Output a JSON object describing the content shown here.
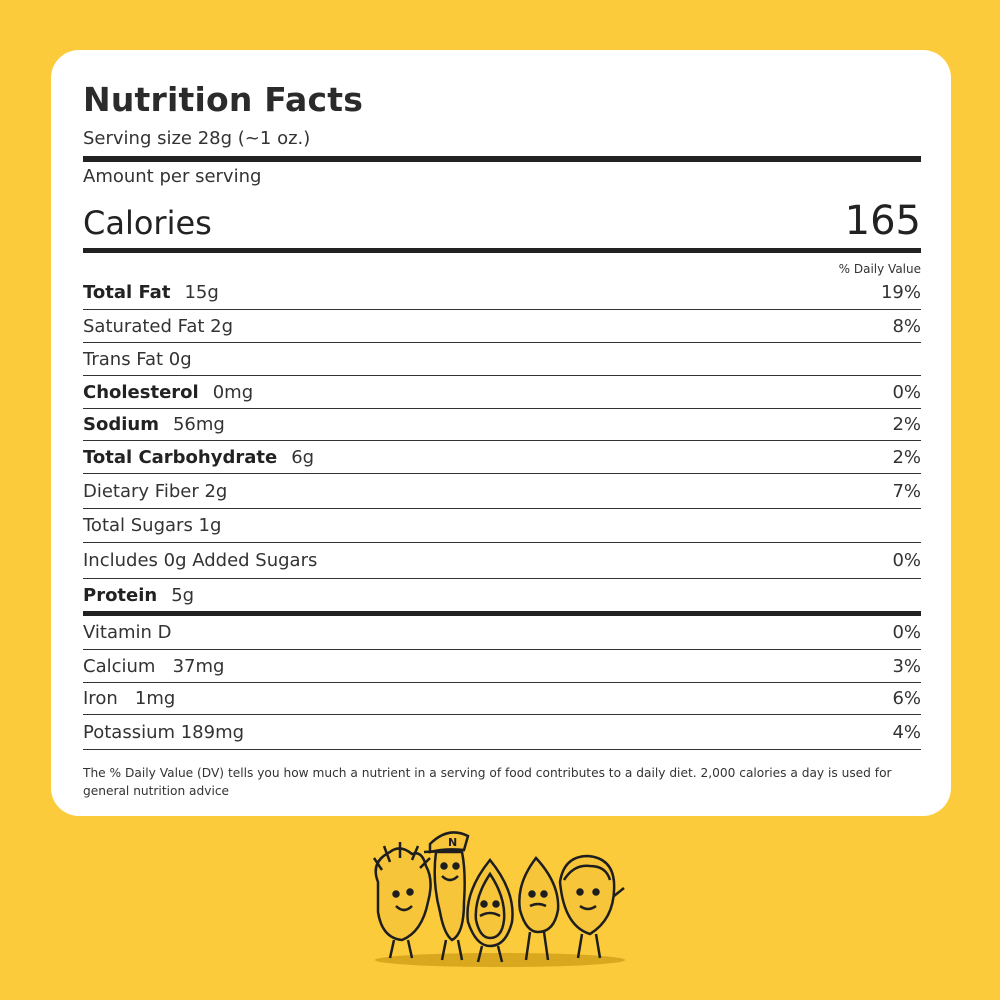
{
  "label": {
    "title": "Nutrition Facts",
    "serving_size": "Serving size 28g (~1 oz.)",
    "amount_per_serving": "Amount per serving",
    "calories_label": "Calories",
    "calories_value": "165",
    "daily_value_header": "% Daily Value",
    "rows": [
      {
        "bold": "Total Fat",
        "amount": "15g",
        "pct": "19%"
      },
      {
        "bold": "",
        "amount": "Saturated Fat 2g",
        "pct": "8%"
      },
      {
        "bold": "",
        "amount": "Trans Fat 0g",
        "pct": ""
      },
      {
        "bold": "Cholesterol",
        "amount": "0mg",
        "pct": "0%"
      },
      {
        "bold": "Sodium",
        "amount": "56mg",
        "pct": "2%"
      },
      {
        "bold": "Total Carbohydrate",
        "amount": "6g",
        "pct": "2%"
      },
      {
        "bold": "",
        "amount": "Dietary Fiber 2g",
        "pct": "7%"
      },
      {
        "bold": "",
        "amount": "Total Sugars 1g",
        "pct": ""
      },
      {
        "bold": "",
        "amount": "Includes 0g Added Sugars",
        "pct": "0%"
      },
      {
        "bold": "Protein",
        "amount": "5g",
        "pct": ""
      },
      {
        "bold": "",
        "amount": "Vitamin D",
        "pct": "0%"
      },
      {
        "bold": "",
        "amount": "Calcium   37mg",
        "pct": "3%"
      },
      {
        "bold": "",
        "amount": "Iron   1mg",
        "pct": "6%"
      },
      {
        "bold": "",
        "amount": "Potassium 189mg",
        "pct": "4%"
      }
    ],
    "footnote": "The % Daily Value (DV) tells you how much a nutrient in a serving of food contributes to a daily diet. 2,000 calories a day is used for general nutrition advice"
  },
  "mascot": {
    "cap_letter": "N"
  },
  "colors": {
    "background": "#FCCB3B",
    "card": "#FFFFFF",
    "text": "#2A2A2A"
  }
}
